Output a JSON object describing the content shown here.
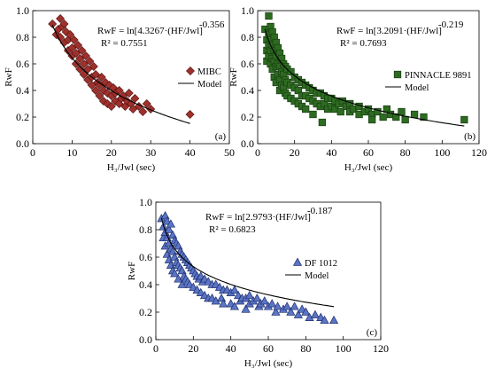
{
  "chart_data": [
    {
      "type": "scatter",
      "panel_label": "(a)",
      "ylabel": "RwF",
      "xlabel": "H₃/Jwl (sec)",
      "xlim": [
        0,
        50
      ],
      "ylim": [
        0,
        1
      ],
      "xticks": [
        "0",
        "10",
        "20",
        "30",
        "40",
        "50"
      ],
      "yticks": [
        "0.0",
        "0.2",
        "0.4",
        "0.6",
        "0.8",
        "1.0"
      ],
      "equation": {
        "prefix": "RwF = ln[4.3267·(HF/Jwl]",
        "exponent": "-0.356",
        "r2": "R² = 0.7551"
      },
      "legend": {
        "marker_label": "MIBC",
        "line_label": "Model",
        "position": "right"
      },
      "marker": "diamond",
      "color": "#a0302c",
      "model": {
        "a": 4.3267,
        "b": -0.356
      },
      "points": [
        [
          5,
          0.9
        ],
        [
          6,
          0.82
        ],
        [
          6.5,
          0.86
        ],
        [
          7,
          0.94
        ],
        [
          7,
          0.8
        ],
        [
          7.5,
          0.88
        ],
        [
          8,
          0.9
        ],
        [
          8,
          0.76
        ],
        [
          8.5,
          0.84
        ],
        [
          9,
          0.78
        ],
        [
          9,
          0.7
        ],
        [
          9.5,
          0.82
        ],
        [
          10,
          0.72
        ],
        [
          10,
          0.66
        ],
        [
          10.5,
          0.78
        ],
        [
          11,
          0.6
        ],
        [
          11,
          0.68
        ],
        [
          11.5,
          0.74
        ],
        [
          12,
          0.56
        ],
        [
          12,
          0.64
        ],
        [
          12.5,
          0.7
        ],
        [
          13,
          0.52
        ],
        [
          13,
          0.6
        ],
        [
          13.5,
          0.66
        ],
        [
          14,
          0.48
        ],
        [
          14,
          0.56
        ],
        [
          14.5,
          0.62
        ],
        [
          15,
          0.44
        ],
        [
          15,
          0.5
        ],
        [
          15.5,
          0.58
        ],
        [
          16,
          0.4
        ],
        [
          16,
          0.52
        ],
        [
          16.5,
          0.46
        ],
        [
          17,
          0.36
        ],
        [
          17,
          0.44
        ],
        [
          17.5,
          0.5
        ],
        [
          18,
          0.32
        ],
        [
          18,
          0.4
        ],
        [
          18.5,
          0.46
        ],
        [
          19,
          0.3
        ],
        [
          19,
          0.38
        ],
        [
          19.5,
          0.44
        ],
        [
          20,
          0.28
        ],
        [
          20,
          0.36
        ],
        [
          20.5,
          0.42
        ],
        [
          21,
          0.32
        ],
        [
          21,
          0.38
        ],
        [
          22,
          0.3
        ],
        [
          22,
          0.4
        ],
        [
          22.5,
          0.34
        ],
        [
          23,
          0.36
        ],
        [
          23.5,
          0.28
        ],
        [
          24,
          0.32
        ],
        [
          24.5,
          0.38
        ],
        [
          25,
          0.3
        ],
        [
          25.5,
          0.26
        ],
        [
          26,
          0.34
        ],
        [
          27,
          0.28
        ],
        [
          28,
          0.24
        ],
        [
          29,
          0.3
        ],
        [
          30,
          0.26
        ],
        [
          40,
          0.22
        ]
      ]
    },
    {
      "type": "scatter",
      "panel_label": "(b)",
      "ylabel": "RwF",
      "xlabel": "H₃/Jwl (sec)",
      "xlim": [
        0,
        120
      ],
      "ylim": [
        0,
        1
      ],
      "xticks": [
        "0",
        "20",
        "40",
        "60",
        "80",
        "100",
        "120"
      ],
      "yticks": [
        "0.0",
        "0.2",
        "0.4",
        "0.6",
        "0.8",
        "1.0"
      ],
      "equation": {
        "prefix": "RwF = ln[3.2091·(HF/Jwl]",
        "exponent": "-0.219",
        "r2": "R² = 0.7693"
      },
      "legend": {
        "marker_label": "PINNACLE 9891",
        "line_label": "Model",
        "position": "right"
      },
      "marker": "square",
      "color": "#2e6b22",
      "model": {
        "a": 3.2091,
        "b": -0.219
      },
      "points": [
        [
          4,
          0.86
        ],
        [
          5,
          0.78
        ],
        [
          5,
          0.7
        ],
        [
          5,
          0.62
        ],
        [
          6,
          0.96
        ],
        [
          6,
          0.82
        ],
        [
          6,
          0.74
        ],
        [
          6,
          0.66
        ],
        [
          7,
          0.88
        ],
        [
          7,
          0.78
        ],
        [
          7,
          0.7
        ],
        [
          7,
          0.6
        ],
        [
          8,
          0.84
        ],
        [
          8,
          0.74
        ],
        [
          8,
          0.64
        ],
        [
          8,
          0.56
        ],
        [
          9,
          0.8
        ],
        [
          9,
          0.7
        ],
        [
          9,
          0.62
        ],
        [
          9,
          0.5
        ],
        [
          10,
          0.76
        ],
        [
          10,
          0.66
        ],
        [
          10,
          0.58
        ],
        [
          10,
          0.46
        ],
        [
          11,
          0.72
        ],
        [
          11,
          0.6
        ],
        [
          11,
          0.52
        ],
        [
          12,
          0.68
        ],
        [
          12,
          0.58
        ],
        [
          12,
          0.48
        ],
        [
          12,
          0.4
        ],
        [
          13,
          0.64
        ],
        [
          13,
          0.54
        ],
        [
          13,
          0.44
        ],
        [
          14,
          0.6
        ],
        [
          14,
          0.52
        ],
        [
          14,
          0.42
        ],
        [
          15,
          0.58
        ],
        [
          15,
          0.48
        ],
        [
          15,
          0.38
        ],
        [
          16,
          0.56
        ],
        [
          16,
          0.46
        ],
        [
          16,
          0.36
        ],
        [
          18,
          0.54
        ],
        [
          18,
          0.44
        ],
        [
          18,
          0.34
        ],
        [
          20,
          0.5
        ],
        [
          20,
          0.42
        ],
        [
          20,
          0.32
        ],
        [
          22,
          0.48
        ],
        [
          22,
          0.4
        ],
        [
          22,
          0.3
        ],
        [
          24,
          0.46
        ],
        [
          24,
          0.36
        ],
        [
          24,
          0.28
        ],
        [
          26,
          0.44
        ],
        [
          26,
          0.36
        ],
        [
          26,
          0.26
        ],
        [
          28,
          0.42
        ],
        [
          28,
          0.34
        ],
        [
          30,
          0.4
        ],
        [
          30,
          0.32
        ],
        [
          30,
          0.22
        ],
        [
          32,
          0.38
        ],
        [
          32,
          0.3
        ],
        [
          34,
          0.38
        ],
        [
          34,
          0.28
        ],
        [
          35,
          0.16
        ],
        [
          36,
          0.36
        ],
        [
          36,
          0.3
        ],
        [
          38,
          0.34
        ],
        [
          38,
          0.26
        ],
        [
          40,
          0.34
        ],
        [
          40,
          0.28
        ],
        [
          42,
          0.32
        ],
        [
          42,
          0.26
        ],
        [
          44,
          0.3
        ],
        [
          45,
          0.24
        ],
        [
          46,
          0.32
        ],
        [
          48,
          0.28
        ],
        [
          50,
          0.3
        ],
        [
          50,
          0.24
        ],
        [
          52,
          0.26
        ],
        [
          55,
          0.28
        ],
        [
          55,
          0.22
        ],
        [
          58,
          0.24
        ],
        [
          60,
          0.26
        ],
        [
          62,
          0.22
        ],
        [
          62,
          0.18
        ],
        [
          65,
          0.24
        ],
        [
          68,
          0.2
        ],
        [
          70,
          0.26
        ],
        [
          72,
          0.22
        ],
        [
          75,
          0.2
        ],
        [
          78,
          0.24
        ],
        [
          80,
          0.18
        ],
        [
          85,
          0.22
        ],
        [
          90,
          0.2
        ],
        [
          112,
          0.18
        ]
      ]
    },
    {
      "type": "scatter",
      "panel_label": "(c)",
      "ylabel": "RwF",
      "xlabel": "H₃/Jwl (sec)",
      "xlim": [
        0,
        120
      ],
      "ylim": [
        0,
        1
      ],
      "xticks": [
        "0",
        "20",
        "40",
        "60",
        "80",
        "100",
        "120"
      ],
      "yticks": [
        "0.0",
        "0.2",
        "0.4",
        "0.6",
        "0.8",
        "1.0"
      ],
      "equation": {
        "prefix": "RwF = ln[2.9793·(HF/Jwl]",
        "exponent": "-0.187",
        "r2": "R² = 0.6823"
      },
      "legend": {
        "marker_label": "DF 1012",
        "line_label": "Model",
        "position": "right"
      },
      "marker": "triangle",
      "color": "#5b74c4",
      "model": {
        "a": 2.9793,
        "b": -0.187
      },
      "points": [
        [
          3,
          0.88
        ],
        [
          4,
          0.82
        ],
        [
          4,
          0.74
        ],
        [
          5,
          0.9
        ],
        [
          5,
          0.78
        ],
        [
          5,
          0.68
        ],
        [
          6,
          0.86
        ],
        [
          6,
          0.74
        ],
        [
          6,
          0.62
        ],
        [
          7,
          0.8
        ],
        [
          7,
          0.7
        ],
        [
          7,
          0.58
        ],
        [
          8,
          0.84
        ],
        [
          8,
          0.66
        ],
        [
          8,
          0.54
        ],
        [
          9,
          0.76
        ],
        [
          9,
          0.64
        ],
        [
          9,
          0.5
        ],
        [
          10,
          0.72
        ],
        [
          10,
          0.6
        ],
        [
          10,
          0.48
        ],
        [
          11,
          0.7
        ],
        [
          11,
          0.56
        ],
        [
          12,
          0.68
        ],
        [
          12,
          0.54
        ],
        [
          12,
          0.44
        ],
        [
          13,
          0.64
        ],
        [
          13,
          0.52
        ],
        [
          14,
          0.62
        ],
        [
          14,
          0.5
        ],
        [
          14,
          0.4
        ],
        [
          15,
          0.6
        ],
        [
          15,
          0.46
        ],
        [
          16,
          0.58
        ],
        [
          16,
          0.44
        ],
        [
          17,
          0.56
        ],
        [
          17,
          0.42
        ],
        [
          18,
          0.54
        ],
        [
          18,
          0.4
        ],
        [
          19,
          0.52
        ],
        [
          20,
          0.5
        ],
        [
          20,
          0.38
        ],
        [
          21,
          0.48
        ],
        [
          22,
          0.46
        ],
        [
          22,
          0.36
        ],
        [
          23,
          0.44
        ],
        [
          24,
          0.46
        ],
        [
          24,
          0.34
        ],
        [
          25,
          0.42
        ],
        [
          26,
          0.44
        ],
        [
          26,
          0.32
        ],
        [
          28,
          0.42
        ],
        [
          28,
          0.3
        ],
        [
          30,
          0.4
        ],
        [
          30,
          0.3
        ],
        [
          32,
          0.4
        ],
        [
          32,
          0.28
        ],
        [
          34,
          0.38
        ],
        [
          35,
          0.3
        ],
        [
          36,
          0.36
        ],
        [
          36,
          0.26
        ],
        [
          38,
          0.36
        ],
        [
          40,
          0.34
        ],
        [
          40,
          0.26
        ],
        [
          42,
          0.36
        ],
        [
          42,
          0.24
        ],
        [
          44,
          0.32
        ],
        [
          45,
          0.28
        ],
        [
          46,
          0.3
        ],
        [
          48,
          0.3
        ],
        [
          48,
          0.22
        ],
        [
          50,
          0.32
        ],
        [
          50,
          0.26
        ],
        [
          52,
          0.28
        ],
        [
          54,
          0.3
        ],
        [
          55,
          0.24
        ],
        [
          56,
          0.26
        ],
        [
          58,
          0.28
        ],
        [
          60,
          0.24
        ],
        [
          62,
          0.26
        ],
        [
          64,
          0.2
        ],
        [
          65,
          0.24
        ],
        [
          68,
          0.22
        ],
        [
          70,
          0.24
        ],
        [
          72,
          0.2
        ],
        [
          74,
          0.24
        ],
        [
          76,
          0.18
        ],
        [
          78,
          0.22
        ],
        [
          80,
          0.2
        ],
        [
          82,
          0.16
        ],
        [
          85,
          0.18
        ],
        [
          88,
          0.16
        ],
        [
          90,
          0.14
        ],
        [
          95,
          0.14
        ]
      ]
    }
  ]
}
